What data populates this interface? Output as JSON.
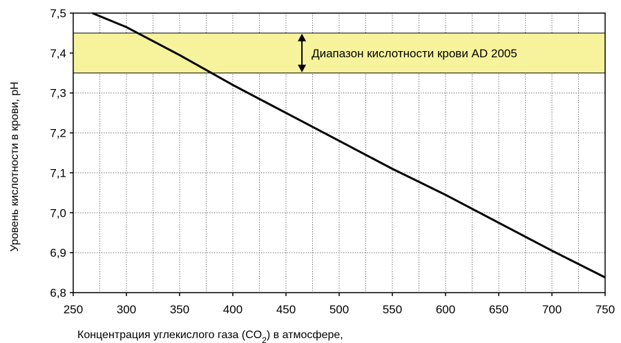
{
  "chart_data": {
    "type": "line",
    "title": "",
    "xlabel_prefix": "Концентрация углекислого газа (CO",
    "xlabel_sub": "2",
    "xlabel_suffix": ") в атмосфере,",
    "ylabel": "Уровень кислотности в крови, pH",
    "xlim": [
      250,
      750
    ],
    "ylim": [
      6.8,
      7.5
    ],
    "x_ticks": [
      250,
      300,
      350,
      400,
      450,
      500,
      550,
      600,
      650,
      700,
      750
    ],
    "x_tick_labels": [
      "250",
      "300",
      "350",
      "400",
      "450",
      "500",
      "550",
      "600",
      "650",
      "700",
      "750"
    ],
    "x_minor_step": 25,
    "y_ticks": [
      6.8,
      6.9,
      7.0,
      7.1,
      7.2,
      7.3,
      7.4,
      7.5
    ],
    "y_tick_labels": [
      "6,8",
      "6,9",
      "7,0",
      "7,1",
      "7,2",
      "7,3",
      "7,4",
      "7,5"
    ],
    "grid": true,
    "series": [
      {
        "x": [
          268,
          300,
          350,
          400,
          450,
          500,
          550,
          600,
          650,
          700,
          750
        ],
        "y": [
          7.5,
          7.465,
          7.395,
          7.32,
          7.25,
          7.18,
          7.11,
          7.045,
          6.975,
          6.905,
          6.838
        ]
      }
    ],
    "band": {
      "y_range": [
        7.35,
        7.45
      ],
      "label": "Диапазон кислотности крови AD 2005",
      "color": "#f7f39c",
      "arrow_x": 465
    },
    "colors": {
      "line": "#000000",
      "grid": "#555555",
      "band": "#f7f39c"
    }
  }
}
